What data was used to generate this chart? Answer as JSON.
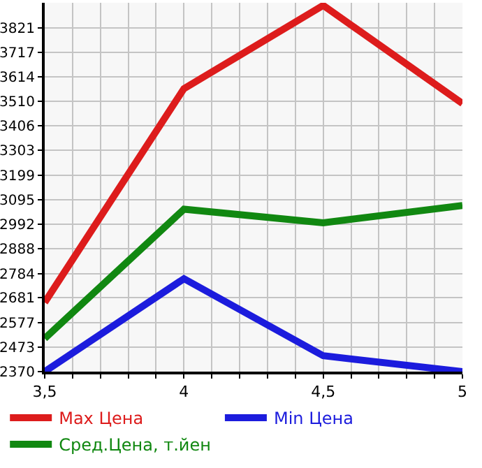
{
  "chart_data": {
    "type": "line",
    "x": [
      3.5,
      4,
      4.5,
      5
    ],
    "series": [
      {
        "name": "Max Цена",
        "color": "#dd1c1c",
        "values": [
          2662,
          3564,
          3915,
          3501
        ]
      },
      {
        "name": "Min Цена",
        "color": "#1c1cdd",
        "values": [
          2370,
          2762,
          2437,
          2370
        ]
      },
      {
        "name": "Сред.Цена, т.йен",
        "color": "#118811",
        "values": [
          2510,
          3055,
          2998,
          3071
        ]
      }
    ],
    "xlim": [
      3.5,
      5
    ],
    "xticks": [
      {
        "value": 3.5,
        "label": "3,5"
      },
      {
        "value": 3.6,
        "label": null
      },
      {
        "value": 3.7,
        "label": null
      },
      {
        "value": 3.8,
        "label": null
      },
      {
        "value": 3.9,
        "label": null
      },
      4,
      {
        "value": 4.1,
        "label": null
      },
      {
        "value": 4.2,
        "label": null
      },
      {
        "value": 4.3,
        "label": null
      },
      {
        "value": 4.4,
        "label": null
      },
      {
        "value": 4.5,
        "label": "4,5"
      },
      {
        "value": 4.6,
        "label": null
      },
      {
        "value": 4.7,
        "label": null
      },
      {
        "value": 4.8,
        "label": null
      },
      {
        "value": 4.9,
        "label": null
      },
      5
    ],
    "ylim": [
      2370,
      3926
    ],
    "yticks": [
      2370,
      2473,
      2577,
      2681,
      2784,
      2888,
      2992,
      3095,
      3199,
      3303,
      3406,
      3510,
      3614,
      3717,
      3821
    ],
    "grid": true,
    "legend": "bottom",
    "marker": "none",
    "line_style": "solid"
  }
}
